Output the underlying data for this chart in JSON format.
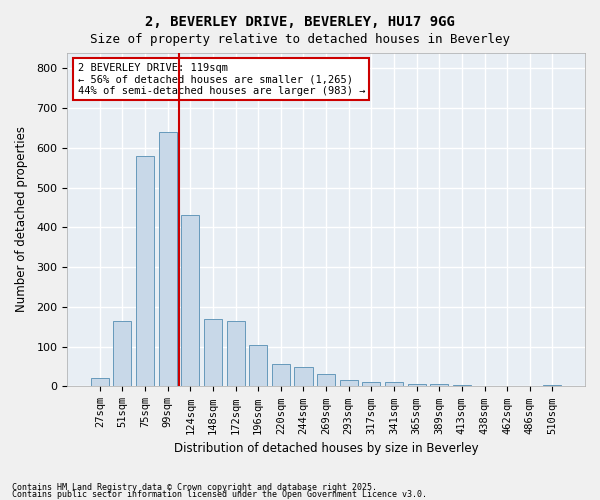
{
  "title": "2, BEVERLEY DRIVE, BEVERLEY, HU17 9GG",
  "subtitle": "Size of property relative to detached houses in Beverley",
  "xlabel": "Distribution of detached houses by size in Beverley",
  "ylabel": "Number of detached properties",
  "bar_color": "#c8d8e8",
  "bar_edge_color": "#6699bb",
  "background_color": "#e8eef4",
  "grid_color": "#ffffff",
  "categories": [
    "27sqm",
    "51sqm",
    "75sqm",
    "99sqm",
    "124sqm",
    "148sqm",
    "172sqm",
    "196sqm",
    "220sqm",
    "244sqm",
    "269sqm",
    "293sqm",
    "317sqm",
    "341sqm",
    "365sqm",
    "389sqm",
    "413sqm",
    "438sqm",
    "462sqm",
    "486sqm",
    "510sqm"
  ],
  "values": [
    20,
    165,
    580,
    640,
    430,
    170,
    165,
    105,
    57,
    48,
    32,
    15,
    10,
    10,
    5,
    5,
    3,
    1,
    0,
    0,
    3
  ],
  "vline_x": 4,
  "vline_color": "#cc0000",
  "annotation_title": "2 BEVERLEY DRIVE: 119sqm",
  "annotation_line1": "← 56% of detached houses are smaller (1,265)",
  "annotation_line2": "44% of semi-detached houses are larger (983) →",
  "annotation_box_color": "#ffffff",
  "annotation_box_edge": "#cc0000",
  "ylim": [
    0,
    840
  ],
  "yticks": [
    0,
    100,
    200,
    300,
    400,
    500,
    600,
    700,
    800
  ],
  "footer1": "Contains HM Land Registry data © Crown copyright and database right 2025.",
  "footer2": "Contains public sector information licensed under the Open Government Licence v3.0."
}
